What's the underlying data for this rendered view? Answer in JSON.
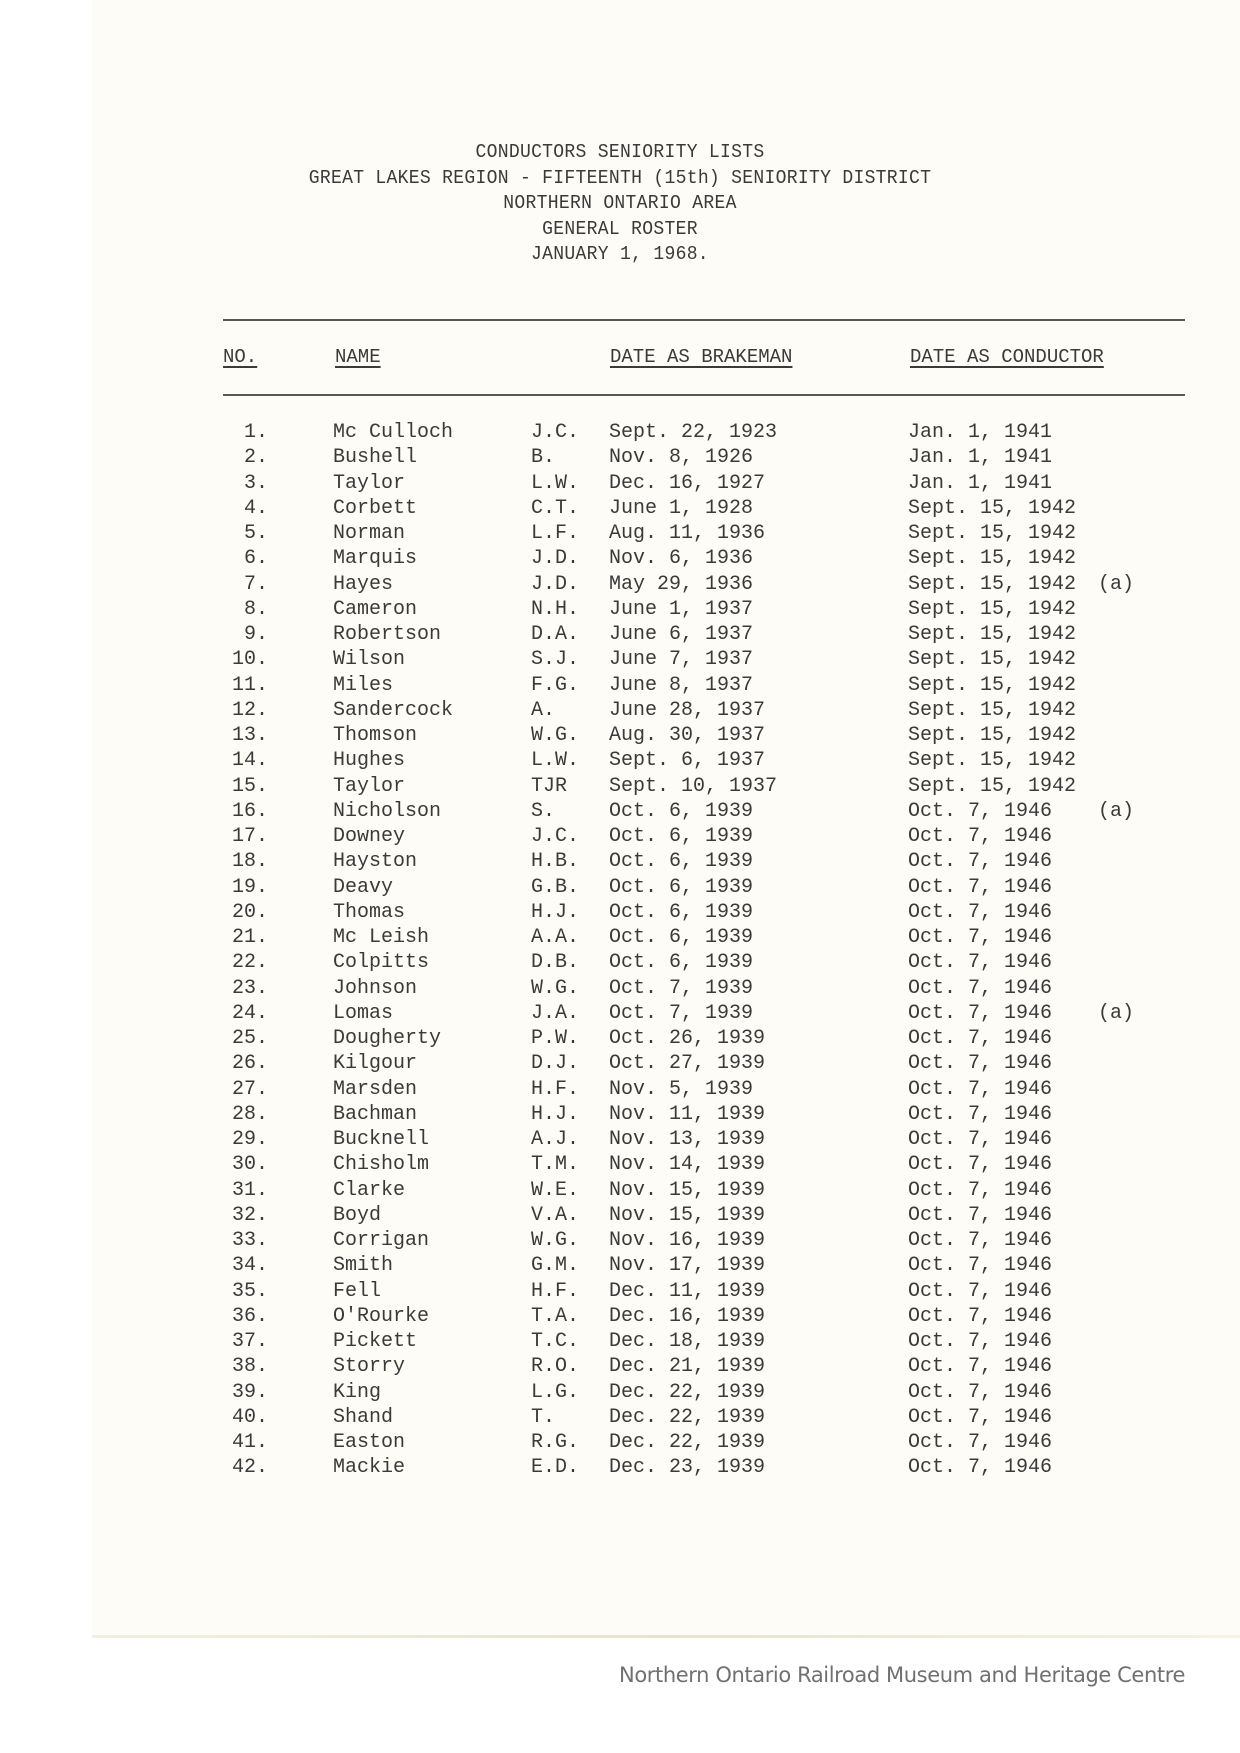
{
  "header": {
    "lines": [
      "CONDUCTORS SENIORITY LISTS",
      "GREAT LAKES REGION - FIFTEENTH (15th) SENIORITY DISTRICT",
      "NORTHERN ONTARIO AREA",
      "GENERAL ROSTER",
      "JANUARY 1, 1968."
    ]
  },
  "table": {
    "columns": {
      "no": "NO.",
      "name": "NAME",
      "brakeman": "DATE AS BRAKEMAN",
      "conductor": "DATE AS CONDUCTOR"
    },
    "rows": [
      {
        "no": "1.",
        "name": "Mc Culloch",
        "initials": "J.C.",
        "brakeman": "Sept. 22, 1923",
        "conductor": "Jan. 1, 1941",
        "note": ""
      },
      {
        "no": "2.",
        "name": "Bushell",
        "initials": "B.",
        "brakeman": "Nov. 8, 1926",
        "conductor": "Jan. 1, 1941",
        "note": ""
      },
      {
        "no": "3.",
        "name": "Taylor",
        "initials": "L.W.",
        "brakeman": "Dec. 16, 1927",
        "conductor": "Jan. 1, 1941",
        "note": ""
      },
      {
        "no": "4.",
        "name": "Corbett",
        "initials": "C.T.",
        "brakeman": "June 1, 1928",
        "conductor": "Sept. 15, 1942",
        "note": ""
      },
      {
        "no": "5.",
        "name": "Norman",
        "initials": "L.F.",
        "brakeman": "Aug. 11, 1936",
        "conductor": "Sept. 15, 1942",
        "note": ""
      },
      {
        "no": "6.",
        "name": "Marquis",
        "initials": "J.D.",
        "brakeman": "Nov. 6, 1936",
        "conductor": "Sept. 15, 1942",
        "note": ""
      },
      {
        "no": "7.",
        "name": "Hayes",
        "initials": "J.D.",
        "brakeman": "May 29, 1936",
        "conductor": "Sept. 15, 1942",
        "note": "(a)"
      },
      {
        "no": "8.",
        "name": "Cameron",
        "initials": "N.H.",
        "brakeman": "June 1, 1937",
        "conductor": "Sept. 15, 1942",
        "note": ""
      },
      {
        "no": "9.",
        "name": "Robertson",
        "initials": "D.A.",
        "brakeman": "June 6, 1937",
        "conductor": "Sept. 15, 1942",
        "note": ""
      },
      {
        "no": "10.",
        "name": "Wilson",
        "initials": "S.J.",
        "brakeman": "June 7, 1937",
        "conductor": "Sept. 15, 1942",
        "note": ""
      },
      {
        "no": "11.",
        "name": "Miles",
        "initials": "F.G.",
        "brakeman": "June 8, 1937",
        "conductor": "Sept. 15, 1942",
        "note": ""
      },
      {
        "no": "12.",
        "name": "Sandercock",
        "initials": "A.",
        "brakeman": "June 28, 1937",
        "conductor": "Sept. 15, 1942",
        "note": ""
      },
      {
        "no": "13.",
        "name": "Thomson",
        "initials": "W.G.",
        "brakeman": "Aug. 30, 1937",
        "conductor": "Sept. 15, 1942",
        "note": ""
      },
      {
        "no": "14.",
        "name": "Hughes",
        "initials": "L.W.",
        "brakeman": "Sept. 6, 1937",
        "conductor": "Sept. 15, 1942",
        "note": ""
      },
      {
        "no": "15.",
        "name": "Taylor",
        "initials": "TJR",
        "brakeman": "Sept. 10, 1937",
        "conductor": "Sept. 15, 1942",
        "note": ""
      },
      {
        "no": "16.",
        "name": "Nicholson",
        "initials": "S.",
        "brakeman": "Oct. 6, 1939",
        "conductor": "Oct. 7, 1946",
        "note": "(a)"
      },
      {
        "no": "17.",
        "name": "Downey",
        "initials": "J.C.",
        "brakeman": "Oct. 6, 1939",
        "conductor": "Oct. 7, 1946",
        "note": ""
      },
      {
        "no": "18.",
        "name": "Hayston",
        "initials": "H.B.",
        "brakeman": "Oct. 6, 1939",
        "conductor": "Oct. 7, 1946",
        "note": ""
      },
      {
        "no": "19.",
        "name": "Deavy",
        "initials": "G.B.",
        "brakeman": "Oct. 6, 1939",
        "conductor": "Oct. 7, 1946",
        "note": ""
      },
      {
        "no": "20.",
        "name": "Thomas",
        "initials": "H.J.",
        "brakeman": "Oct. 6, 1939",
        "conductor": "Oct. 7, 1946",
        "note": ""
      },
      {
        "no": "21.",
        "name": "Mc Leish",
        "initials": "A.A.",
        "brakeman": "Oct. 6, 1939",
        "conductor": "Oct. 7, 1946",
        "note": ""
      },
      {
        "no": "22.",
        "name": "Colpitts",
        "initials": "D.B.",
        "brakeman": "Oct. 6, 1939",
        "conductor": "Oct. 7, 1946",
        "note": ""
      },
      {
        "no": "23.",
        "name": "Johnson",
        "initials": "W.G.",
        "brakeman": "Oct. 7, 1939",
        "conductor": "Oct. 7, 1946",
        "note": ""
      },
      {
        "no": "24.",
        "name": "Lomas",
        "initials": "J.A.",
        "brakeman": "Oct. 7, 1939",
        "conductor": "Oct. 7, 1946",
        "note": "(a)"
      },
      {
        "no": "25.",
        "name": "Dougherty",
        "initials": "P.W.",
        "brakeman": "Oct. 26, 1939",
        "conductor": "Oct. 7, 1946",
        "note": ""
      },
      {
        "no": "26.",
        "name": "Kilgour",
        "initials": "D.J.",
        "brakeman": "Oct. 27, 1939",
        "conductor": "Oct. 7, 1946",
        "note": ""
      },
      {
        "no": "27.",
        "name": "Marsden",
        "initials": "H.F.",
        "brakeman": "Nov. 5, 1939",
        "conductor": "Oct. 7, 1946",
        "note": ""
      },
      {
        "no": "28.",
        "name": "Bachman",
        "initials": "H.J.",
        "brakeman": "Nov. 11, 1939",
        "conductor": "Oct. 7, 1946",
        "note": ""
      },
      {
        "no": "29.",
        "name": "Bucknell",
        "initials": "A.J.",
        "brakeman": "Nov. 13, 1939",
        "conductor": "Oct. 7, 1946",
        "note": ""
      },
      {
        "no": "30.",
        "name": "Chisholm",
        "initials": "T.M.",
        "brakeman": "Nov. 14, 1939",
        "conductor": "Oct. 7, 1946",
        "note": ""
      },
      {
        "no": "31.",
        "name": "Clarke",
        "initials": "W.E.",
        "brakeman": "Nov. 15, 1939",
        "conductor": "Oct. 7, 1946",
        "note": ""
      },
      {
        "no": "32.",
        "name": "Boyd",
        "initials": "V.A.",
        "brakeman": "Nov. 15, 1939",
        "conductor": "Oct. 7, 1946",
        "note": ""
      },
      {
        "no": "33.",
        "name": "Corrigan",
        "initials": "W.G.",
        "brakeman": "Nov. 16, 1939",
        "conductor": "Oct. 7, 1946",
        "note": ""
      },
      {
        "no": "34.",
        "name": "Smith",
        "initials": "G.M.",
        "brakeman": "Nov. 17, 1939",
        "conductor": "Oct. 7, 1946",
        "note": ""
      },
      {
        "no": "35.",
        "name": "Fell",
        "initials": "H.F.",
        "brakeman": "Dec. 11, 1939",
        "conductor": "Oct. 7, 1946",
        "note": ""
      },
      {
        "no": "36.",
        "name": "O'Rourke",
        "initials": "T.A.",
        "brakeman": "Dec. 16, 1939",
        "conductor": "Oct. 7, 1946",
        "note": ""
      },
      {
        "no": "37.",
        "name": "Pickett",
        "initials": "T.C.",
        "brakeman": "Dec. 18, 1939",
        "conductor": "Oct. 7, 1946",
        "note": ""
      },
      {
        "no": "38.",
        "name": "Storry",
        "initials": "R.O.",
        "brakeman": "Dec. 21, 1939",
        "conductor": "Oct. 7, 1946",
        "note": ""
      },
      {
        "no": "39.",
        "name": "King",
        "initials": "L.G.",
        "brakeman": "Dec. 22, 1939",
        "conductor": "Oct. 7, 1946",
        "note": ""
      },
      {
        "no": "40.",
        "name": "Shand",
        "initials": "T.",
        "brakeman": "Dec. 22, 1939",
        "conductor": "Oct. 7, 1946",
        "note": ""
      },
      {
        "no": "41.",
        "name": "Easton",
        "initials": "R.G.",
        "brakeman": "Dec. 22, 1939",
        "conductor": "Oct. 7, 1946",
        "note": ""
      },
      {
        "no": "42.",
        "name": "Mackie",
        "initials": "E.D.",
        "brakeman": "Dec. 23, 1939",
        "conductor": "Oct. 7, 1946",
        "note": ""
      }
    ]
  },
  "footer": {
    "watermark": "Northern Ontario Railroad Museum and Heritage Centre"
  }
}
